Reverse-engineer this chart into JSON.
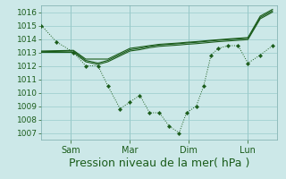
{
  "bg_color": "#cce8e8",
  "grid_color": "#99cccc",
  "line_color": "#1a5c1a",
  "marker_color": "#1a5c1a",
  "xlabel": "Pression niveau de la mer( hPa )",
  "xlabel_fontsize": 9,
  "ylim": [
    1006.5,
    1016.5
  ],
  "yticks": [
    1007,
    1008,
    1009,
    1010,
    1011,
    1012,
    1013,
    1014,
    1015,
    1016
  ],
  "xtick_labels": [
    "Sam",
    "Mar",
    "Dim",
    "Lun"
  ],
  "series1_x": [
    0,
    6,
    13,
    18,
    23,
    27,
    32,
    36,
    40,
    44,
    48,
    52,
    56,
    59,
    63,
    66,
    69,
    72,
    76,
    80,
    84,
    89,
    94
  ],
  "series1_y": [
    1015.0,
    1013.8,
    1013.0,
    1012.0,
    1012.0,
    1010.5,
    1008.8,
    1009.3,
    1009.8,
    1008.5,
    1008.5,
    1007.5,
    1007.0,
    1008.5,
    1009.0,
    1010.5,
    1012.8,
    1013.3,
    1013.5,
    1013.5,
    1012.2,
    1012.8,
    1013.5
  ],
  "series2_x": [
    0,
    13,
    18,
    23,
    27,
    36,
    40,
    44,
    48,
    52,
    56,
    59,
    63,
    66,
    69,
    72,
    76,
    80,
    84,
    89,
    94
  ],
  "series2_y": [
    1013.0,
    1013.0,
    1012.3,
    1012.1,
    1012.3,
    1013.1,
    1013.2,
    1013.35,
    1013.45,
    1013.5,
    1013.55,
    1013.6,
    1013.65,
    1013.7,
    1013.75,
    1013.8,
    1013.85,
    1013.9,
    1013.95,
    1015.5,
    1016.0
  ],
  "series3_x": [
    0,
    13,
    18,
    23,
    27,
    36,
    40,
    44,
    48,
    52,
    56,
    59,
    63,
    66,
    69,
    72,
    76,
    80,
    84,
    89,
    94
  ],
  "series3_y": [
    1013.05,
    1013.1,
    1012.4,
    1012.2,
    1012.4,
    1013.2,
    1013.3,
    1013.45,
    1013.55,
    1013.6,
    1013.65,
    1013.7,
    1013.75,
    1013.8,
    1013.85,
    1013.9,
    1013.95,
    1014.0,
    1014.05,
    1015.6,
    1016.1
  ],
  "series4_x": [
    0,
    13,
    18,
    27,
    36,
    48,
    56,
    59,
    63,
    69,
    76,
    84,
    89,
    94
  ],
  "series4_y": [
    1013.1,
    1013.15,
    1012.5,
    1012.5,
    1013.3,
    1013.6,
    1013.7,
    1013.75,
    1013.8,
    1013.9,
    1014.0,
    1014.1,
    1015.7,
    1016.2
  ],
  "xmin": 0,
  "xmax": 96,
  "xtick_x": [
    12,
    36,
    60,
    84
  ]
}
